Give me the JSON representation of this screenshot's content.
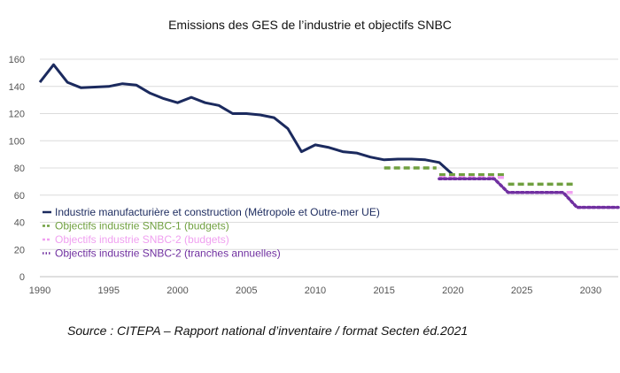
{
  "chart_data": {
    "type": "line",
    "title": "Emissions des GES de l’industrie et objectifs SNBC",
    "xlim": [
      1990,
      2032
    ],
    "ylim": [
      0,
      160
    ],
    "x_ticks": [
      1990,
      1995,
      2000,
      2005,
      2010,
      2015,
      2020,
      2025,
      2030
    ],
    "y_ticks": [
      0,
      20,
      40,
      60,
      80,
      100,
      120,
      140,
      160
    ],
    "grid": true,
    "legend_position": "bottom-left",
    "series": [
      {
        "name": "Industrie manufacturière et construction (Métropole et Outre-mer UE)",
        "color": "#1b2a5e",
        "style": "solid",
        "x": [
          1990,
          1991,
          1992,
          1993,
          1994,
          1995,
          1996,
          1997,
          1998,
          1999,
          2000,
          2001,
          2002,
          2003,
          2004,
          2005,
          2006,
          2007,
          2008,
          2009,
          2010,
          2011,
          2012,
          2013,
          2014,
          2015,
          2016,
          2017,
          2018,
          2019,
          2020
        ],
        "values": [
          143,
          156,
          143,
          139,
          139.5,
          140,
          142,
          141,
          135,
          131,
          128,
          132,
          128,
          126,
          120,
          120,
          119,
          117,
          109,
          92,
          97,
          95,
          92,
          91,
          88,
          86,
          86.5,
          86.5,
          86,
          84,
          75
        ]
      },
      {
        "name": "Objectifs industrie SNBC-1 (budgets)",
        "color": "#70a040",
        "style": "dashed",
        "segments": [
          {
            "x": [
              2015,
              2018.8
            ],
            "values": [
              80,
              80
            ]
          },
          {
            "x": [
              2019,
              2023.8
            ],
            "values": [
              75,
              75
            ]
          },
          {
            "x": [
              2024,
              2028.8
            ],
            "values": [
              68,
              68
            ]
          }
        ]
      },
      {
        "name": "Objectifs industrie SNBC-2 (budgets)",
        "color": "#f0a0f0",
        "style": "dashed",
        "segments": [
          {
            "x": [
              2019,
              2023.8
            ],
            "values": [
              73,
              73
            ]
          },
          {
            "x": [
              2024,
              2028.8
            ],
            "values": [
              62,
              62
            ]
          },
          {
            "x": [
              2029,
              2032
            ],
            "values": [
              51,
              51
            ]
          }
        ]
      },
      {
        "name": "Objectifs industrie SNBC-2 (tranches annuelles)",
        "color": "#7030a0",
        "style": "dotted",
        "x": [
          2019,
          2020,
          2021,
          2022,
          2023,
          2024,
          2025,
          2026,
          2027,
          2028,
          2029,
          2030,
          2031,
          2032
        ],
        "values": [
          72,
          72,
          72,
          72,
          72,
          62,
          62,
          62,
          62,
          62,
          51,
          51,
          51,
          51
        ]
      }
    ],
    "source": "Source : CITEPA – Rapport national d’inventaire / format Secten éd.2021"
  }
}
